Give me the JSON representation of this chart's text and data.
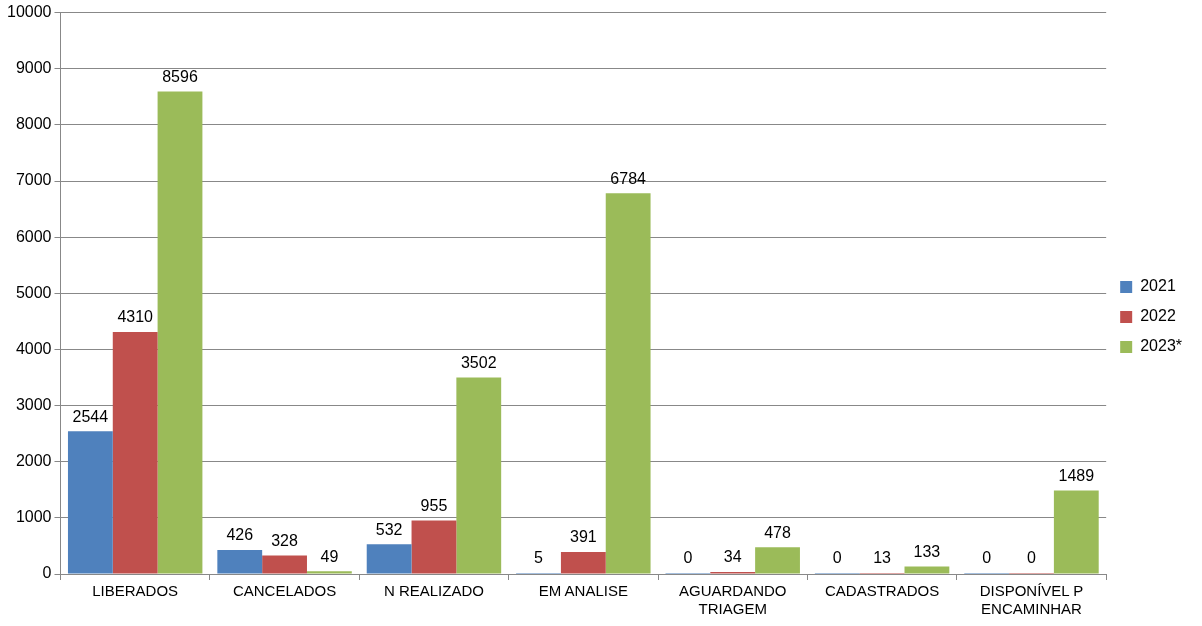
{
  "chart_data": {
    "type": "bar",
    "categories": [
      "LIBERADOS",
      "CANCELADOS",
      "N REALIZADO",
      "EM ANALISE",
      "AGUARDANDO TRIAGEM",
      "CADASTRADOS",
      "DISPONÍVEL P ENCAMINHAR"
    ],
    "series": [
      {
        "name": "2021",
        "color": "#4f81bd",
        "values": [
          2544,
          426,
          532,
          5,
          0,
          0,
          0
        ]
      },
      {
        "name": "2022",
        "color": "#c0504d",
        "values": [
          4310,
          328,
          955,
          391,
          34,
          13,
          0
        ]
      },
      {
        "name": "2023*",
        "color": "#9bbb59",
        "values": [
          8596,
          49,
          3502,
          6784,
          478,
          133,
          1489
        ]
      }
    ],
    "ylim": [
      0,
      10000
    ],
    "yticks": [
      0,
      1000,
      2000,
      3000,
      4000,
      5000,
      6000,
      7000,
      8000,
      9000,
      10000
    ],
    "grid": "y",
    "legend": "right",
    "data_labels": true
  }
}
